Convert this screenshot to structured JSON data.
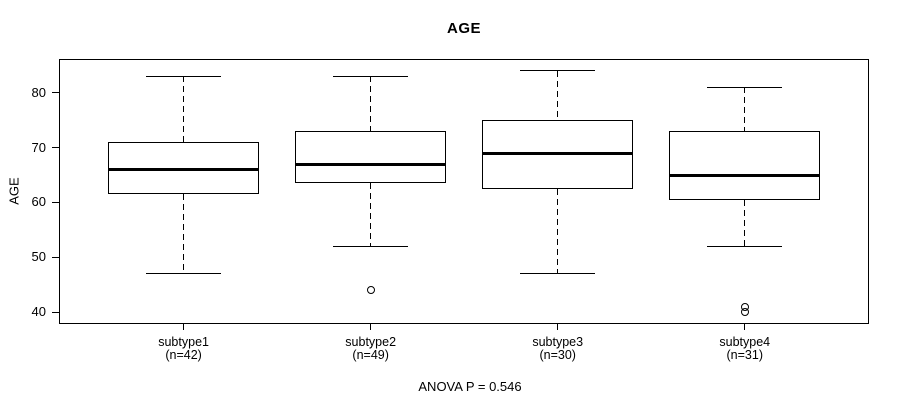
{
  "chart_data": {
    "type": "boxplot",
    "title": "AGE",
    "ylabel": "AGE",
    "xlabel": "",
    "annotation": "ANOVA P = 0.546",
    "ylim": [
      38,
      86
    ],
    "yticks": [
      40,
      50,
      60,
      70,
      80
    ],
    "grid": false,
    "legend": "none",
    "line_color": "#000000",
    "box_fill": "#ffffff",
    "groups": [
      {
        "label": "subtype1",
        "n_label": "(n=42)",
        "n": 42,
        "whisker_low": 47,
        "q1": 61.5,
        "median": 66,
        "q3": 71,
        "whisker_high": 83,
        "outliers": []
      },
      {
        "label": "subtype2",
        "n_label": "(n=49)",
        "n": 49,
        "whisker_low": 52,
        "q1": 63.5,
        "median": 67,
        "q3": 73,
        "whisker_high": 83,
        "outliers": [
          44
        ]
      },
      {
        "label": "subtype3",
        "n_label": "(n=30)",
        "n": 30,
        "whisker_low": 47,
        "q1": 62.5,
        "median": 69,
        "q3": 75,
        "whisker_high": 84,
        "outliers": []
      },
      {
        "label": "subtype4",
        "n_label": "(n=31)",
        "n": 31,
        "whisker_low": 52,
        "q1": 60.5,
        "median": 65,
        "q3": 73,
        "whisker_high": 81,
        "outliers": [
          41,
          40
        ]
      }
    ]
  }
}
